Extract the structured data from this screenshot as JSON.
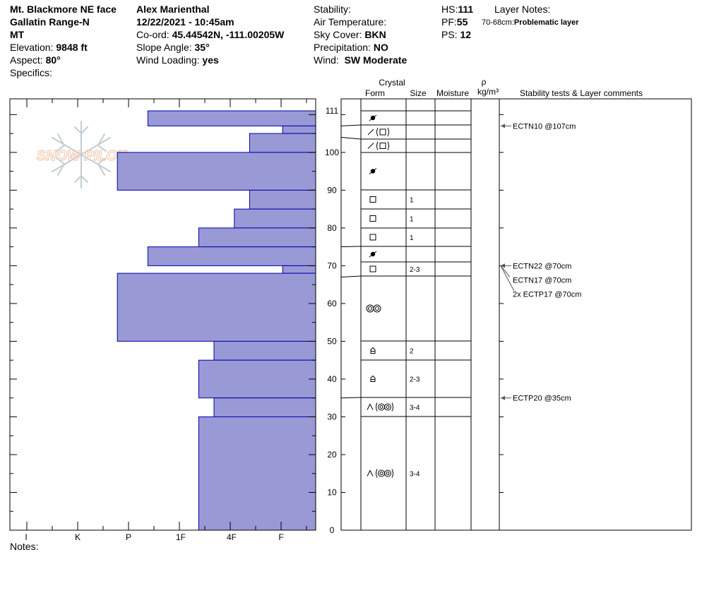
{
  "header": {
    "location": "Mt. Blackmore NE face",
    "range": "Gallatin Range-N",
    "state": "MT",
    "elevation_label": "Elevation:",
    "elevation": "9848 ft",
    "aspect_label": "Aspect:",
    "aspect": "80°",
    "specifics_label": "Specifics:",
    "observer": "Alex Marienthal",
    "datetime": "12/22/2021 - 10:45am",
    "coord_label": "Co-ord:",
    "coord": "45.44542N, -111.00205W",
    "slope_label": "Slope Angle:",
    "slope": "35°",
    "wind_loading_label": "Wind Loading:",
    "wind_loading": "yes",
    "stability_label": "Stability:",
    "air_temp_label": "Air Temperature:",
    "sky_label": "Sky Cover:",
    "sky": "BKN",
    "precip_label": "Precipitation:",
    "precip": "NO",
    "wind_label": "Wind:",
    "wind": "SW Moderate",
    "hs_label": "HS:",
    "hs": "111",
    "pf_label": "PF:",
    "pf": "55",
    "ps_label": "PS:",
    "ps": "12",
    "layer_notes_label": "Layer Notes:",
    "layer_note_range": "70-68cm:",
    "layer_note_text": "Problematic layer"
  },
  "columns": {
    "crystal": "Crystal",
    "form": "Form",
    "size": "Size",
    "moisture": "Moisture",
    "rho": "ρ",
    "density_unit": "kg/m³",
    "stability": "Stability tests & Layer comments"
  },
  "logo_text": "SNOW PILOT",
  "notes_label": "Notes:",
  "colors": {
    "bar_fill": "#9999d6",
    "bar_stroke": "#0000aa",
    "line": "#000000"
  },
  "chart_data": {
    "type": "bar",
    "orientation": "horizontal",
    "y_range": [
      0,
      111
    ],
    "y_ticks": [
      0,
      10,
      20,
      30,
      40,
      50,
      60,
      70,
      80,
      90,
      100,
      111
    ],
    "hardness_scale": [
      "I",
      "K",
      "P",
      "1F",
      "4F",
      "F"
    ],
    "layers": [
      {
        "top": 111,
        "bottom": 107,
        "hardness": 3.3
      },
      {
        "top": 107,
        "bottom": 105,
        "hardness": 0.65
      },
      {
        "top": 105,
        "bottom": 100,
        "hardness": 1.3
      },
      {
        "top": 100,
        "bottom": 90,
        "hardness": 3.9
      },
      {
        "top": 90,
        "bottom": 85,
        "hardness": 1.3
      },
      {
        "top": 85,
        "bottom": 80,
        "hardness": 1.6
      },
      {
        "top": 80,
        "bottom": 75,
        "hardness": 2.3
      },
      {
        "top": 75,
        "bottom": 70,
        "hardness": 3.3
      },
      {
        "top": 70,
        "bottom": 68,
        "hardness": 0.65
      },
      {
        "top": 68,
        "bottom": 50,
        "hardness": 3.9
      },
      {
        "top": 50,
        "bottom": 45,
        "hardness": 2.0
      },
      {
        "top": 45,
        "bottom": 35,
        "hardness": 2.3
      },
      {
        "top": 35,
        "bottom": 30,
        "hardness": 2.0
      },
      {
        "top": 30,
        "bottom": 0,
        "hardness": 2.3
      }
    ],
    "crystal_layers": [
      {
        "top": 111,
        "bottom": 107,
        "form": "decomposing",
        "size": ""
      },
      {
        "top": 107,
        "bottom": 104,
        "form": "faceted-mixed",
        "size": ""
      },
      {
        "top": 104,
        "bottom": 100,
        "form": "faceted-mixed",
        "size": ""
      },
      {
        "top": 100,
        "bottom": 90,
        "form": "decomposing",
        "size": ""
      },
      {
        "top": 90,
        "bottom": 85,
        "form": "faceted",
        "size": "1"
      },
      {
        "top": 85,
        "bottom": 80,
        "form": "faceted",
        "size": "1"
      },
      {
        "top": 80,
        "bottom": 75,
        "form": "faceted",
        "size": "1"
      },
      {
        "top": 75,
        "bottom": 71,
        "form": "decomposing",
        "size": ""
      },
      {
        "top": 71,
        "bottom": 67,
        "form": "faceted",
        "size": "2-3"
      },
      {
        "top": 67,
        "bottom": 50,
        "form": "melt-forms",
        "size": ""
      },
      {
        "top": 50,
        "bottom": 45,
        "form": "depth-hoar",
        "size": "2"
      },
      {
        "top": 45,
        "bottom": 35,
        "form": "depth-hoar",
        "size": "2-3"
      },
      {
        "top": 35,
        "bottom": 30,
        "form": "hoar-melt",
        "size": "3-4"
      },
      {
        "top": 30,
        "bottom": 0,
        "form": "hoar-melt",
        "size": "3-4"
      }
    ],
    "stability_tests": [
      {
        "depth": 107,
        "label": "ECTN10 @107cm"
      },
      {
        "depth": 70,
        "label": "ECTN22 @70cm"
      },
      {
        "depth": 70,
        "label": "ECTN17 @70cm"
      },
      {
        "depth": 70,
        "label": "2x ECTP17 @70cm"
      },
      {
        "depth": 35,
        "label": "ECTP20 @35cm"
      }
    ]
  }
}
